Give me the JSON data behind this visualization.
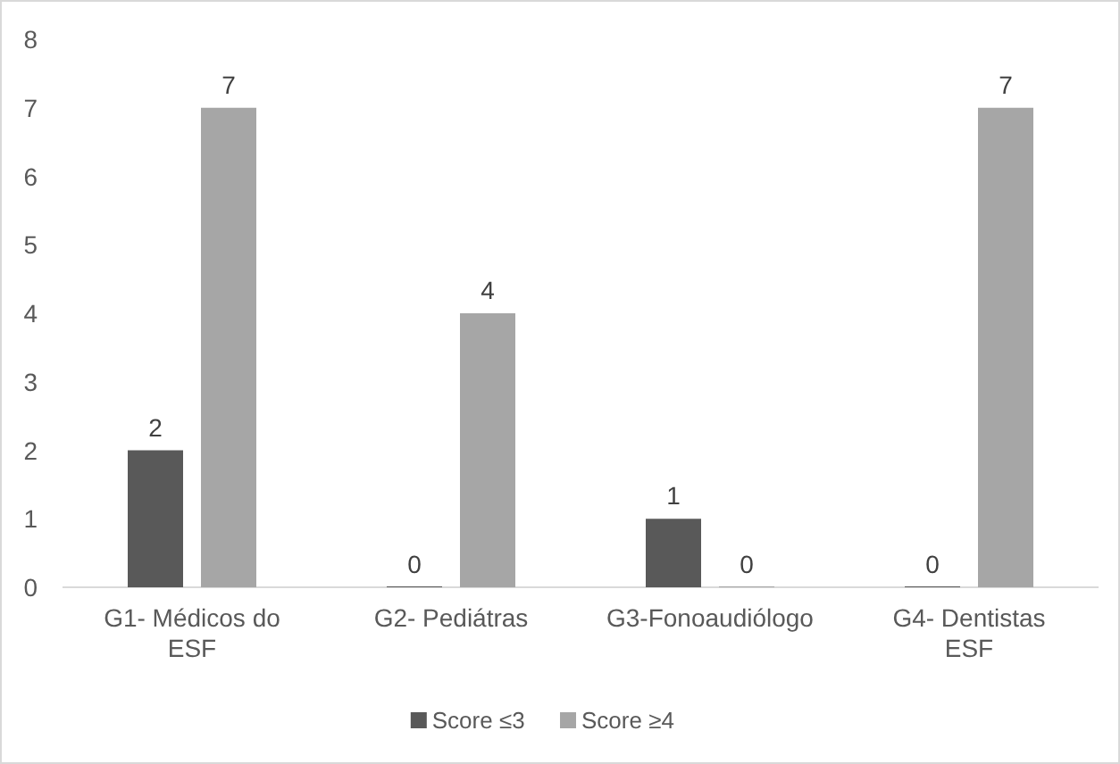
{
  "chart_data": {
    "type": "bar",
    "categories": [
      "G1- Médicos do ESF",
      "G2- Pediátras",
      "G3-Fonoaudiólogo",
      "G4- Dentistas ESF"
    ],
    "series": [
      {
        "name": "Score ≤3",
        "color": "#595959",
        "values": [
          2,
          0,
          1,
          0
        ]
      },
      {
        "name": "Score ≥4",
        "color": "#a6a6a6",
        "values": [
          7,
          4,
          0,
          7
        ]
      }
    ],
    "ylim": [
      0,
      8
    ],
    "yticks": [
      0,
      1,
      2,
      3,
      4,
      5,
      6,
      7,
      8
    ],
    "data_labels": true,
    "legend": "bottom",
    "grid": false
  }
}
